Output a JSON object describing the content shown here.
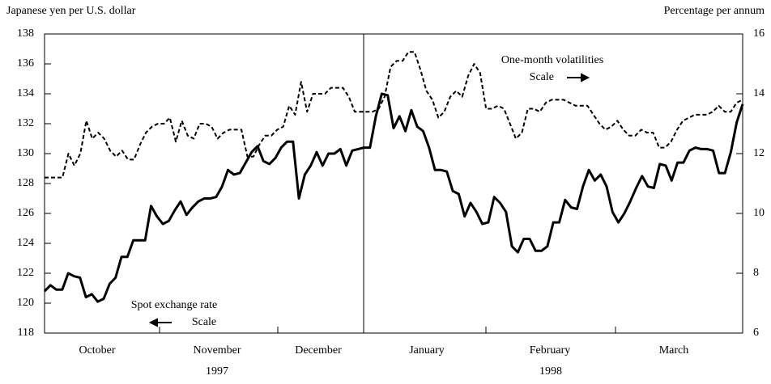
{
  "chart_data": {
    "type": "line",
    "y_label": "Japanese yen per U.S. dollar",
    "y2_label": "Percentage per annum",
    "months": [
      "October",
      "November",
      "December",
      "January",
      "February",
      "March"
    ],
    "years": [
      "1997",
      "1998"
    ],
    "ylim": [
      118,
      138
    ],
    "yticks": [
      118,
      120,
      122,
      124,
      126,
      128,
      130,
      132,
      134,
      136,
      138
    ],
    "y2lim": [
      6,
      16
    ],
    "y2ticks": [
      6,
      8,
      10,
      12,
      14,
      16
    ],
    "scale_label": "Scale",
    "series": [
      {
        "name": "Spot exchange rate",
        "color": "#000000",
        "dash": false,
        "values": [
          120.8,
          121.2,
          120.9,
          120.9,
          122.0,
          121.8,
          121.7,
          120.4,
          120.6,
          120.1,
          120.3,
          121.3,
          121.7,
          123.1,
          123.1,
          124.2,
          124.2,
          124.2,
          126.5,
          125.8,
          125.3,
          125.5,
          126.2,
          126.8,
          125.9,
          126.4,
          126.8,
          127.0,
          127.0,
          127.1,
          127.8,
          128.9,
          128.6,
          128.7,
          129.4,
          130.1,
          130.5,
          129.5,
          129.3,
          129.7,
          130.4,
          130.8,
          130.8,
          127.0,
          128.6,
          129.2,
          130.1,
          129.2,
          130.0,
          130.0,
          130.3,
          129.2,
          130.2,
          130.3,
          130.4,
          130.4,
          132.5,
          134.0,
          133.9,
          131.7,
          132.5,
          131.5,
          132.9,
          131.8,
          131.5,
          130.4,
          128.9,
          128.9,
          128.8,
          127.5,
          127.3,
          125.8,
          126.7,
          126.1,
          125.3,
          125.4,
          127.1,
          126.7,
          126.1,
          123.8,
          123.4,
          124.3,
          124.3,
          123.5,
          123.5,
          123.8,
          125.4,
          125.4,
          126.9,
          126.4,
          126.3,
          127.8,
          128.9,
          128.2,
          128.6,
          127.8,
          126.1,
          125.4,
          126.0,
          126.8,
          127.7,
          128.5,
          127.8,
          127.7,
          129.3,
          129.2,
          128.2,
          129.4,
          129.4,
          130.2,
          130.4,
          130.3,
          130.3,
          130.2,
          128.7,
          128.7,
          130.1,
          132.1,
          133.3
        ]
      },
      {
        "name": "One-month volatilities",
        "color": "#000000",
        "dash": true,
        "axis": "y2",
        "values": [
          11.2,
          11.2,
          11.2,
          11.2,
          12.0,
          11.6,
          12.0,
          13.1,
          12.5,
          12.7,
          12.5,
          12.1,
          11.9,
          12.1,
          11.8,
          11.8,
          12.3,
          12.7,
          12.9,
          13.0,
          13.0,
          13.2,
          12.4,
          13.1,
          12.6,
          12.5,
          13.0,
          13.0,
          12.9,
          12.5,
          12.7,
          12.8,
          12.8,
          12.8,
          11.9,
          11.9,
          12.3,
          12.6,
          12.6,
          12.8,
          12.9,
          13.6,
          13.3,
          14.4,
          13.4,
          14.0,
          14.0,
          14.0,
          14.2,
          14.2,
          14.2,
          13.9,
          13.4,
          13.4,
          13.4,
          13.4,
          13.5,
          13.9,
          14.9,
          15.1,
          15.1,
          15.4,
          15.4,
          14.8,
          14.1,
          13.8,
          13.2,
          13.4,
          13.9,
          14.1,
          13.9,
          14.6,
          15.0,
          14.7,
          13.5,
          13.5,
          13.6,
          13.5,
          13.0,
          12.5,
          12.7,
          13.5,
          13.5,
          13.4,
          13.7,
          13.8,
          13.8,
          13.8,
          13.7,
          13.6,
          13.6,
          13.6,
          13.3,
          13.0,
          12.8,
          12.9,
          13.1,
          12.8,
          12.6,
          12.6,
          12.8,
          12.7,
          12.7,
          12.2,
          12.2,
          12.4,
          12.8,
          13.1,
          13.2,
          13.3,
          13.3,
          13.3,
          13.4,
          13.6,
          13.4,
          13.4,
          13.7,
          13.8
        ]
      }
    ]
  }
}
